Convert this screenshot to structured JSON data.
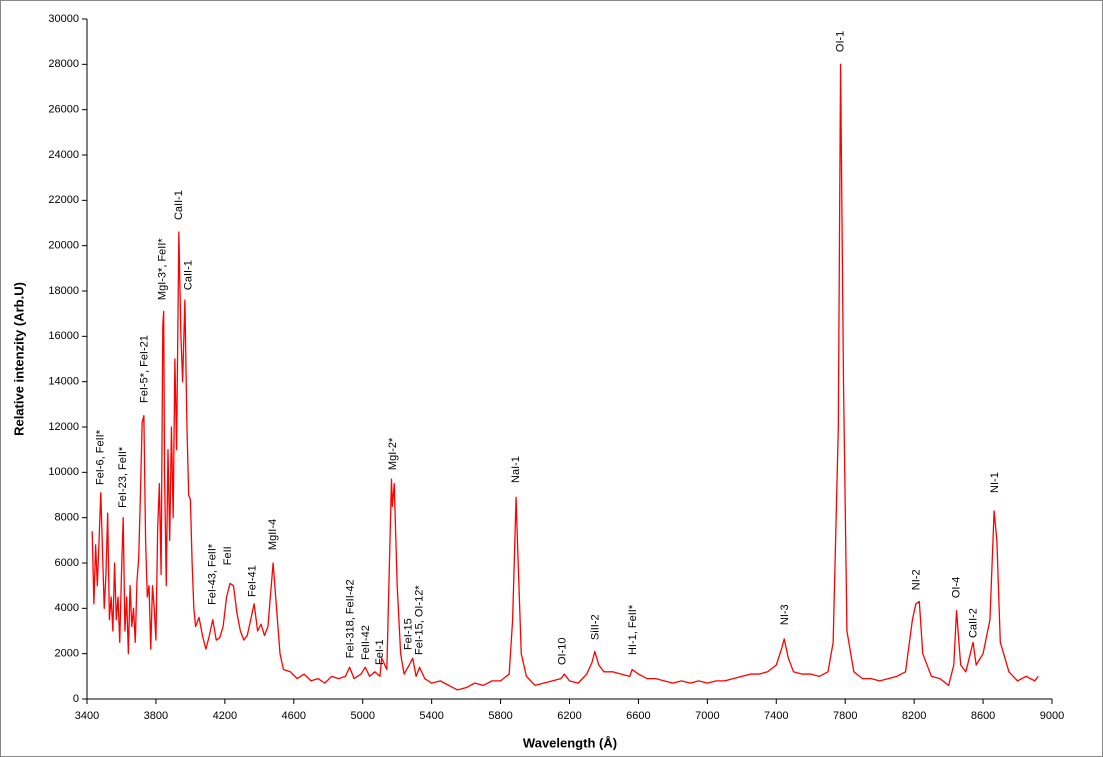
{
  "chart_data": {
    "type": "line",
    "xlabel": "Wavelength (Å)",
    "ylabel": "Relative intenzity (Arb.U)",
    "xlim": [
      3400,
      9000
    ],
    "xticks": [
      3400,
      3800,
      4200,
      4600,
      5000,
      5400,
      5800,
      6200,
      6600,
      7000,
      7400,
      7800,
      8200,
      8600,
      9000
    ],
    "ylim": [
      0,
      30000
    ],
    "yticks": [
      0,
      2000,
      4000,
      6000,
      8000,
      10000,
      12000,
      14000,
      16000,
      18000,
      20000,
      22000,
      24000,
      26000,
      28000,
      30000
    ],
    "grid": false,
    "series": [
      {
        "color": "#ff0000",
        "x": [
          3430,
          3440,
          3450,
          3460,
          3470,
          3480,
          3490,
          3500,
          3510,
          3520,
          3530,
          3540,
          3550,
          3560,
          3570,
          3580,
          3590,
          3600,
          3610,
          3620,
          3630,
          3640,
          3650,
          3660,
          3670,
          3680,
          3690,
          3700,
          3710,
          3720,
          3730,
          3740,
          3750,
          3760,
          3770,
          3780,
          3790,
          3800,
          3810,
          3820,
          3830,
          3840,
          3845,
          3850,
          3860,
          3870,
          3880,
          3890,
          3900,
          3910,
          3920,
          3933,
          3945,
          3955,
          3968,
          3980,
          3990,
          4000,
          4010,
          4020,
          4030,
          4050,
          4070,
          4090,
          4110,
          4130,
          4150,
          4170,
          4190,
          4210,
          4230,
          4250,
          4270,
          4290,
          4310,
          4330,
          4350,
          4370,
          4390,
          4410,
          4430,
          4450,
          4480,
          4500,
          4520,
          4540,
          4580,
          4620,
          4660,
          4700,
          4740,
          4780,
          4820,
          4860,
          4900,
          4924,
          4950,
          4990,
          5015,
          5040,
          5070,
          5100,
          5110,
          5140,
          5167,
          5172,
          5183,
          5200,
          5220,
          5240,
          5270,
          5290,
          5310,
          5330,
          5360,
          5400,
          5450,
          5500,
          5550,
          5600,
          5650,
          5700,
          5750,
          5800,
          5850,
          5870,
          5890,
          5900,
          5920,
          5950,
          6000,
          6050,
          6100,
          6150,
          6170,
          6200,
          6250,
          6300,
          6330,
          6347,
          6370,
          6400,
          6450,
          6500,
          6550,
          6563,
          6600,
          6650,
          6700,
          6750,
          6800,
          6850,
          6900,
          6950,
          7000,
          7050,
          7100,
          7150,
          7200,
          7250,
          7300,
          7350,
          7400,
          7430,
          7446,
          7470,
          7500,
          7550,
          7600,
          7650,
          7700,
          7730,
          7760,
          7773,
          7790,
          7810,
          7850,
          7900,
          7950,
          8000,
          8050,
          8100,
          8150,
          8190,
          8210,
          8230,
          8250,
          8300,
          8350,
          8400,
          8430,
          8446,
          8470,
          8500,
          8542,
          8560,
          8600,
          8640,
          8664,
          8680,
          8700,
          8750,
          8800,
          8850,
          8900,
          8920
        ],
        "values": [
          7400,
          4200,
          6800,
          5000,
          7000,
          9100,
          6500,
          4000,
          5500,
          8200,
          3500,
          4500,
          3000,
          6000,
          3500,
          4500,
          2500,
          5500,
          8000,
          3000,
          4500,
          2000,
          5000,
          3200,
          4000,
          2500,
          5200,
          6200,
          9000,
          12200,
          12500,
          7000,
          4500,
          5000,
          2200,
          5000,
          4000,
          2600,
          7500,
          9500,
          5500,
          16500,
          17100,
          10000,
          5000,
          11000,
          7000,
          12000,
          8000,
          15000,
          11000,
          20600,
          16000,
          14000,
          17600,
          12000,
          9000,
          8800,
          6000,
          4000,
          3200,
          3600,
          2800,
          2200,
          2800,
          3500,
          2600,
          2700,
          3200,
          4500,
          5100,
          5000,
          3800,
          3000,
          2600,
          2800,
          3500,
          4200,
          3000,
          3300,
          2800,
          3200,
          6000,
          4000,
          2000,
          1300,
          1200,
          900,
          1100,
          800,
          900,
          700,
          1000,
          900,
          1000,
          1400,
          900,
          1100,
          1400,
          1000,
          1200,
          1000,
          1800,
          1300,
          9700,
          8500,
          9500,
          5000,
          2000,
          1100,
          1500,
          1800,
          1000,
          1400,
          900,
          700,
          800,
          600,
          400,
          500,
          700,
          600,
          800,
          800,
          1100,
          3500,
          8900,
          6500,
          2000,
          1000,
          600,
          700,
          800,
          900,
          1100,
          800,
          700,
          1100,
          1600,
          2100,
          1500,
          1200,
          1200,
          1100,
          1000,
          1300,
          1100,
          900,
          900,
          800,
          700,
          800,
          700,
          800,
          700,
          800,
          800,
          900,
          1000,
          1100,
          1100,
          1200,
          1500,
          2200,
          2650,
          1800,
          1200,
          1100,
          1100,
          1000,
          1200,
          2500,
          12000,
          28000,
          14000,
          3000,
          1200,
          900,
          900,
          800,
          900,
          1000,
          1200,
          3500,
          4200,
          4300,
          2000,
          1000,
          900,
          600,
          1500,
          3900,
          1500,
          1200,
          2500,
          1500,
          2000,
          3500,
          8300,
          7000,
          2500,
          1200,
          800,
          1000,
          800,
          1000
        ]
      }
    ],
    "annotations": [
      {
        "text": "FeI-6, FeII*",
        "x": 3480,
        "y": 9440
      },
      {
        "text": "FeI-23, FeII*",
        "x": 3610,
        "y": 8430
      },
      {
        "text": "FeI-5*, FeI-21",
        "x": 3735,
        "y": 13060
      },
      {
        "text": "MgI-3*, FeII*",
        "x": 3840,
        "y": 17600
      },
      {
        "text": "CaII-1",
        "x": 3933,
        "y": 21130
      },
      {
        "text": "CaII-1",
        "x": 3990,
        "y": 18040
      },
      {
        "text": "FeI-43, FeII*",
        "x": 4130,
        "y": 4150
      },
      {
        "text": "FeII",
        "x": 4220,
        "y": 5900
      },
      {
        "text": "FeI-41",
        "x": 4360,
        "y": 4500
      },
      {
        "text": "MgII-4",
        "x": 4480,
        "y": 6570
      },
      {
        "text": "FeI-318, FeII-42",
        "x": 4930,
        "y": 1800
      },
      {
        "text": "FeII-42",
        "x": 5020,
        "y": 1720
      },
      {
        "text": "FeI-1",
        "x": 5100,
        "y": 1500
      },
      {
        "text": "MgI-2*",
        "x": 5175,
        "y": 10100
      },
      {
        "text": "FeI-15",
        "x": 5265,
        "y": 2160
      },
      {
        "text": "FeI-15, OI-12*",
        "x": 5330,
        "y": 1940
      },
      {
        "text": "NaI-1",
        "x": 5890,
        "y": 9530
      },
      {
        "text": "OI-10",
        "x": 6160,
        "y": 1500
      },
      {
        "text": "SiII-2",
        "x": 6350,
        "y": 2600
      },
      {
        "text": "HI-1, FeII*",
        "x": 6570,
        "y": 1940
      },
      {
        "text": "NI-3",
        "x": 7450,
        "y": 3260
      },
      {
        "text": "OI-1",
        "x": 7773,
        "y": 28540
      },
      {
        "text": "NI-2",
        "x": 8215,
        "y": 4800
      },
      {
        "text": "OI-4",
        "x": 8446,
        "y": 4450
      },
      {
        "text": "CaII-2",
        "x": 8545,
        "y": 2690
      },
      {
        "text": "NI-1",
        "x": 8670,
        "y": 9090
      }
    ]
  }
}
